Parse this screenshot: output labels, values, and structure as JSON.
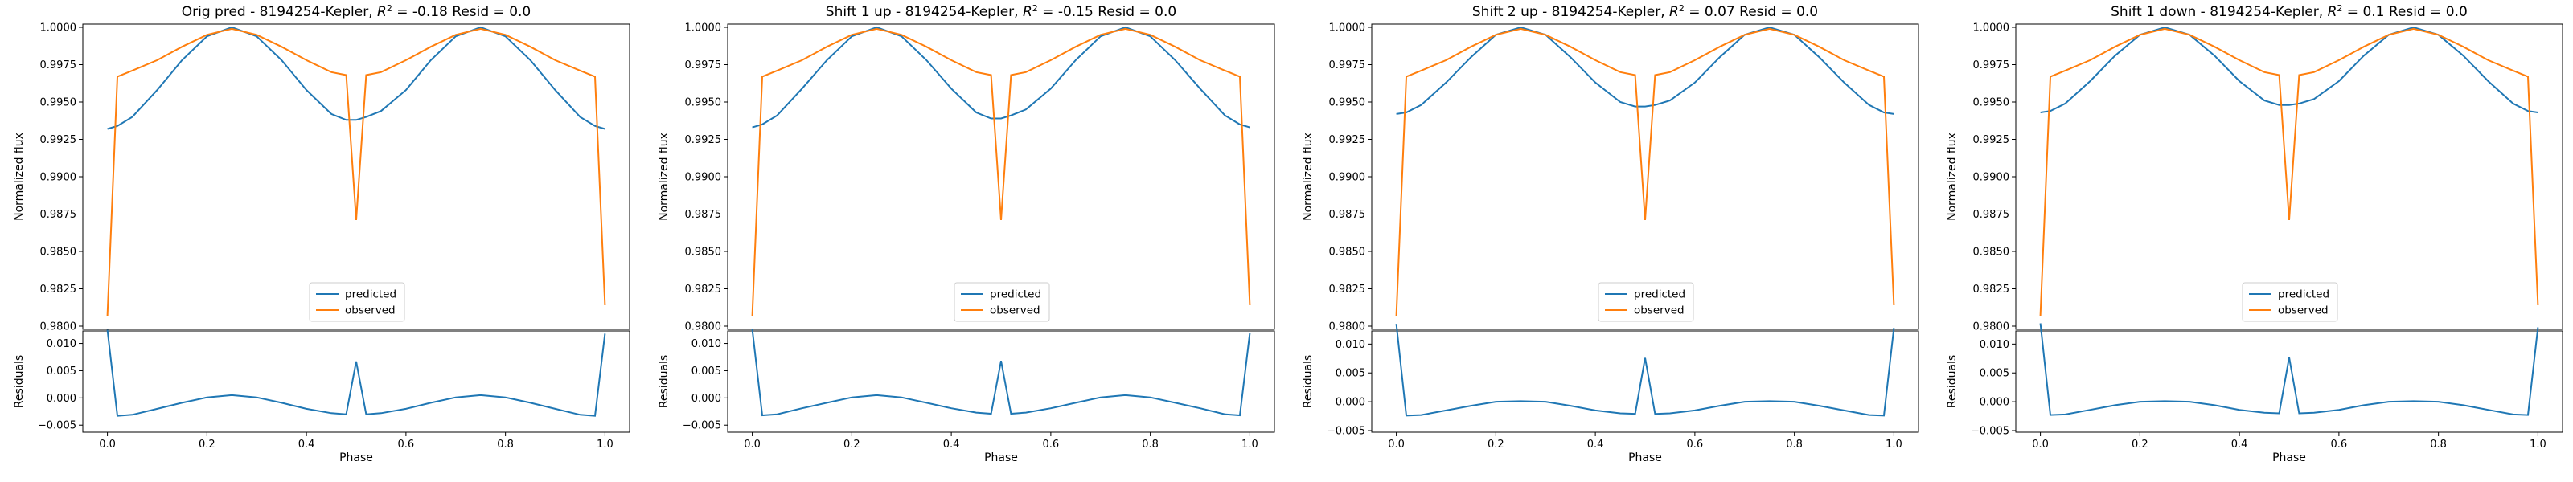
{
  "figure": {
    "colors": {
      "predicted": "#1f77b4",
      "observed": "#ff7f0e"
    }
  },
  "chart_data": [
    {
      "type": "line",
      "title": "Orig pred - 8194254-Kepler, $R^2$ = -0.18 Resid = 0.0",
      "xlabel": "Phase",
      "ylabel": "Normalized flux",
      "residual_ylabel": "Residuals",
      "legend_position": "lower-center",
      "grid": false,
      "xlim": [
        0.0,
        1.0
      ],
      "ylim": [
        0.98,
        1.0
      ],
      "residual_ylim": [
        -0.006,
        0.012
      ],
      "x_ticks": [
        "0.0",
        "0.2",
        "0.4",
        "0.6",
        "0.8",
        "1.0"
      ],
      "y_ticks": [
        "0.9800",
        "0.9825",
        "0.9850",
        "0.9875",
        "0.9900",
        "0.9925",
        "0.9950",
        "0.9975",
        "1.0000"
      ],
      "residual_ticks": [
        "−0.005",
        "0.000",
        "0.005",
        "0.010"
      ],
      "x": [
        0.0,
        0.02,
        0.05,
        0.1,
        0.15,
        0.2,
        0.25,
        0.3,
        0.35,
        0.4,
        0.45,
        0.48,
        0.5,
        0.52,
        0.55,
        0.6,
        0.65,
        0.7,
        0.75,
        0.8,
        0.85,
        0.9,
        0.95,
        0.98,
        1.0
      ],
      "series": [
        {
          "name": "predicted",
          "values": [
            0.9932,
            0.9934,
            0.994,
            0.9958,
            0.9978,
            0.9994,
            1.0,
            0.9994,
            0.9978,
            0.9958,
            0.9942,
            0.9938,
            0.9938,
            0.994,
            0.9944,
            0.9958,
            0.9978,
            0.9994,
            1.0,
            0.9994,
            0.9978,
            0.9958,
            0.994,
            0.9934,
            0.9932
          ]
        },
        {
          "name": "observed",
          "values": [
            0.9807,
            0.9967,
            0.9971,
            0.9978,
            0.9987,
            0.9995,
            0.9999,
            0.9995,
            0.9987,
            0.9978,
            0.997,
            0.9968,
            0.9871,
            0.9968,
            0.997,
            0.9978,
            0.9987,
            0.9995,
            0.9999,
            0.9995,
            0.9987,
            0.9978,
            0.9971,
            0.9967,
            0.9814
          ]
        },
        {
          "name": "residuals",
          "values": [
            0.0125,
            -0.0033,
            -0.0031,
            -0.002,
            -0.0009,
            0.0001,
            0.0005,
            0.0001,
            -0.0009,
            -0.002,
            -0.0028,
            -0.003,
            0.0067,
            -0.003,
            -0.0028,
            -0.002,
            -0.0009,
            0.0001,
            0.0005,
            0.0001,
            -0.0009,
            -0.002,
            -0.0031,
            -0.0033,
            0.0118
          ]
        }
      ]
    },
    {
      "type": "line",
      "title": "Shift 1 up - 8194254-Kepler, $R^2$ = -0.15 Resid = 0.0",
      "xlabel": "Phase",
      "ylabel": "Normalized flux",
      "residual_ylabel": "Residuals",
      "legend_position": "lower-center",
      "grid": false,
      "xlim": [
        0.0,
        1.0
      ],
      "ylim": [
        0.98,
        1.0
      ],
      "residual_ylim": [
        -0.006,
        0.012
      ],
      "x_ticks": [
        "0.0",
        "0.2",
        "0.4",
        "0.6",
        "0.8",
        "1.0"
      ],
      "y_ticks": [
        "0.9800",
        "0.9825",
        "0.9850",
        "0.9875",
        "0.9900",
        "0.9925",
        "0.9950",
        "0.9975",
        "1.0000"
      ],
      "residual_ticks": [
        "−0.005",
        "0.000",
        "0.005",
        "0.010"
      ],
      "x": [
        0.0,
        0.02,
        0.05,
        0.1,
        0.15,
        0.2,
        0.25,
        0.3,
        0.35,
        0.4,
        0.45,
        0.48,
        0.5,
        0.52,
        0.55,
        0.6,
        0.65,
        0.7,
        0.75,
        0.8,
        0.85,
        0.9,
        0.95,
        0.98,
        1.0
      ],
      "series": [
        {
          "name": "predicted",
          "values": [
            0.9933,
            0.9935,
            0.9941,
            0.9959,
            0.9978,
            0.9994,
            1.0,
            0.9994,
            0.9978,
            0.9959,
            0.9943,
            0.9939,
            0.9939,
            0.9941,
            0.9945,
            0.9959,
            0.9978,
            0.9994,
            1.0,
            0.9994,
            0.9978,
            0.9959,
            0.9941,
            0.9935,
            0.9933
          ]
        },
        {
          "name": "observed",
          "values": [
            0.9807,
            0.9967,
            0.9971,
            0.9978,
            0.9987,
            0.9995,
            0.9999,
            0.9995,
            0.9987,
            0.9978,
            0.997,
            0.9968,
            0.9871,
            0.9968,
            0.997,
            0.9978,
            0.9987,
            0.9995,
            0.9999,
            0.9995,
            0.9987,
            0.9978,
            0.9971,
            0.9967,
            0.9814
          ]
        },
        {
          "name": "residuals",
          "values": [
            0.0126,
            -0.0032,
            -0.003,
            -0.0019,
            -0.0009,
            0.0001,
            0.0005,
            0.0001,
            -0.0009,
            -0.0019,
            -0.0027,
            -0.0029,
            0.0068,
            -0.0029,
            -0.0027,
            -0.0019,
            -0.0009,
            0.0001,
            0.0005,
            0.0001,
            -0.0009,
            -0.0019,
            -0.003,
            -0.0032,
            0.0119
          ]
        }
      ]
    },
    {
      "type": "line",
      "title": "Shift 2 up - 8194254-Kepler, $R^2$ = 0.07 Resid = 0.0",
      "xlabel": "Phase",
      "ylabel": "Normalized flux",
      "residual_ylabel": "Residuals",
      "legend_position": "lower-center",
      "grid": false,
      "xlim": [
        0.0,
        1.0
      ],
      "ylim": [
        0.98,
        1.0
      ],
      "residual_ylim": [
        -0.005,
        0.012
      ],
      "x_ticks": [
        "0.0",
        "0.2",
        "0.4",
        "0.6",
        "0.8",
        "1.0"
      ],
      "y_ticks": [
        "0.9800",
        "0.9825",
        "0.9850",
        "0.9875",
        "0.9900",
        "0.9925",
        "0.9950",
        "0.9975",
        "1.0000"
      ],
      "residual_ticks": [
        "−0.005",
        "0.000",
        "0.005",
        "0.010"
      ],
      "x": [
        0.0,
        0.02,
        0.05,
        0.1,
        0.15,
        0.2,
        0.25,
        0.3,
        0.35,
        0.4,
        0.45,
        0.48,
        0.5,
        0.52,
        0.55,
        0.6,
        0.65,
        0.7,
        0.75,
        0.8,
        0.85,
        0.9,
        0.95,
        0.98,
        1.0
      ],
      "series": [
        {
          "name": "predicted",
          "values": [
            0.9942,
            0.9943,
            0.9948,
            0.9963,
            0.998,
            0.9995,
            1.0,
            0.9995,
            0.998,
            0.9963,
            0.995,
            0.9947,
            0.9947,
            0.9948,
            0.9951,
            0.9963,
            0.998,
            0.9995,
            1.0,
            0.9995,
            0.998,
            0.9963,
            0.9948,
            0.9943,
            0.9942
          ]
        },
        {
          "name": "observed",
          "values": [
            0.9807,
            0.9967,
            0.9971,
            0.9978,
            0.9987,
            0.9995,
            0.9999,
            0.9995,
            0.9987,
            0.9978,
            0.997,
            0.9968,
            0.9871,
            0.9968,
            0.997,
            0.9978,
            0.9987,
            0.9995,
            0.9999,
            0.9995,
            0.9987,
            0.9978,
            0.9971,
            0.9967,
            0.9814
          ]
        },
        {
          "name": "residuals",
          "values": [
            0.0135,
            -0.0024,
            -0.0023,
            -0.0015,
            -0.0007,
            0.0,
            0.0001,
            0.0,
            -0.0007,
            -0.0015,
            -0.002,
            -0.0021,
            0.0076,
            -0.0021,
            -0.002,
            -0.0015,
            -0.0007,
            0.0,
            0.0001,
            0.0,
            -0.0007,
            -0.0015,
            -0.0023,
            -0.0024,
            0.0128
          ]
        }
      ]
    },
    {
      "type": "line",
      "title": "Shift 1 down - 8194254-Kepler, $R^2$ = 0.1 Resid = 0.0",
      "xlabel": "Phase",
      "ylabel": "Normalized flux",
      "residual_ylabel": "Residuals",
      "legend_position": "lower-center",
      "grid": false,
      "xlim": [
        0.0,
        1.0
      ],
      "ylim": [
        0.98,
        1.0
      ],
      "residual_ylim": [
        -0.005,
        0.012
      ],
      "x_ticks": [
        "0.0",
        "0.2",
        "0.4",
        "0.6",
        "0.8",
        "1.0"
      ],
      "y_ticks": [
        "0.9800",
        "0.9825",
        "0.9850",
        "0.9875",
        "0.9900",
        "0.9925",
        "0.9950",
        "0.9975",
        "1.0000"
      ],
      "residual_ticks": [
        "−0.005",
        "0.000",
        "0.005",
        "0.010"
      ],
      "x": [
        0.0,
        0.02,
        0.05,
        0.1,
        0.15,
        0.2,
        0.25,
        0.3,
        0.35,
        0.4,
        0.45,
        0.48,
        0.5,
        0.52,
        0.55,
        0.6,
        0.65,
        0.7,
        0.75,
        0.8,
        0.85,
        0.9,
        0.95,
        0.98,
        1.0
      ],
      "series": [
        {
          "name": "predicted",
          "values": [
            0.9943,
            0.9944,
            0.9949,
            0.9964,
            0.9981,
            0.9995,
            1.0,
            0.9995,
            0.9981,
            0.9964,
            0.9951,
            0.9948,
            0.9948,
            0.9949,
            0.9952,
            0.9964,
            0.9981,
            0.9995,
            1.0,
            0.9995,
            0.9981,
            0.9964,
            0.9949,
            0.9944,
            0.9943
          ]
        },
        {
          "name": "observed",
          "values": [
            0.9807,
            0.9967,
            0.9971,
            0.9978,
            0.9987,
            0.9995,
            0.9999,
            0.9995,
            0.9987,
            0.9978,
            0.997,
            0.9968,
            0.9871,
            0.9968,
            0.997,
            0.9978,
            0.9987,
            0.9995,
            0.9999,
            0.9995,
            0.9987,
            0.9978,
            0.9971,
            0.9967,
            0.9814
          ]
        },
        {
          "name": "residuals",
          "values": [
            0.0136,
            -0.0023,
            -0.0022,
            -0.0014,
            -0.0006,
            0.0,
            0.0001,
            0.0,
            -0.0006,
            -0.0014,
            -0.0019,
            -0.002,
            0.0077,
            -0.002,
            -0.0019,
            -0.0014,
            -0.0006,
            0.0,
            0.0001,
            0.0,
            -0.0006,
            -0.0014,
            -0.0022,
            -0.0023,
            0.0129
          ]
        }
      ]
    }
  ]
}
